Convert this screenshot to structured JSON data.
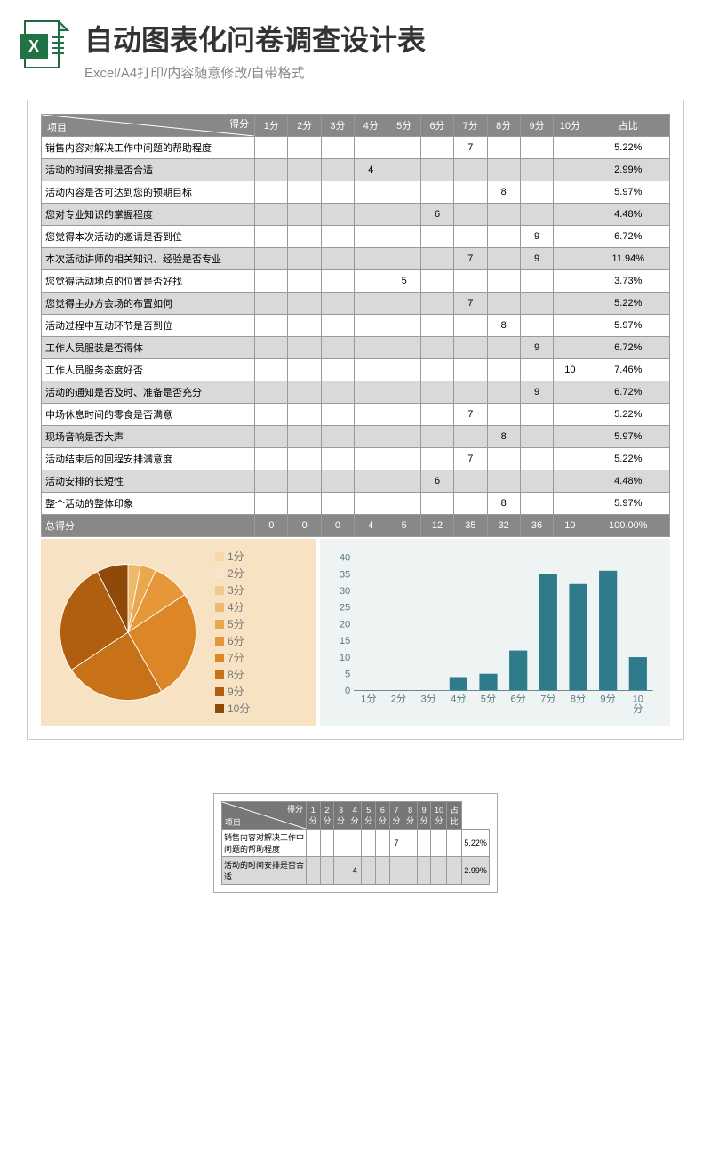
{
  "header": {
    "title": "自动图表化问卷调查设计表",
    "subtitle": "Excel/A4打印/内容随意修改/自带格式",
    "icon_fill": "#217346",
    "icon_accent": "#ffffff"
  },
  "table": {
    "diag_top": "得分",
    "diag_bottom": "项目",
    "score_headers": [
      "1分",
      "2分",
      "3分",
      "4分",
      "5分",
      "6分",
      "7分",
      "8分",
      "9分",
      "10分"
    ],
    "pct_header": "占比",
    "rows": [
      {
        "label": "销售内容对解决工作中问题的帮助程度",
        "cells": [
          "",
          "",
          "",
          "",
          "",
          "",
          "7",
          "",
          "",
          ""
        ],
        "pct": "5.22%"
      },
      {
        "label": "活动的时间安排是否合适",
        "cells": [
          "",
          "",
          "",
          "4",
          "",
          "",
          "",
          "",
          "",
          ""
        ],
        "pct": "2.99%"
      },
      {
        "label": "活动内容是否可达到您的预期目标",
        "cells": [
          "",
          "",
          "",
          "",
          "",
          "",
          "",
          "8",
          "",
          ""
        ],
        "pct": "5.97%"
      },
      {
        "label": "您对专业知识的掌握程度",
        "cells": [
          "",
          "",
          "",
          "",
          "",
          "6",
          "",
          "",
          "",
          ""
        ],
        "pct": "4.48%"
      },
      {
        "label": "您觉得本次活动的邀请是否到位",
        "cells": [
          "",
          "",
          "",
          "",
          "",
          "",
          "",
          "",
          "9",
          ""
        ],
        "pct": "6.72%"
      },
      {
        "label": "本次活动讲师的相关知识、经验是否专业",
        "cells": [
          "",
          "",
          "",
          "",
          "",
          "",
          "7",
          "",
          "9",
          ""
        ],
        "pct": "11.94%"
      },
      {
        "label": "您觉得活动地点的位置是否好找",
        "cells": [
          "",
          "",
          "",
          "",
          "5",
          "",
          "",
          "",
          "",
          ""
        ],
        "pct": "3.73%"
      },
      {
        "label": "您觉得主办方会场的布置如何",
        "cells": [
          "",
          "",
          "",
          "",
          "",
          "",
          "7",
          "",
          "",
          ""
        ],
        "pct": "5.22%"
      },
      {
        "label": "活动过程中互动环节是否到位",
        "cells": [
          "",
          "",
          "",
          "",
          "",
          "",
          "",
          "8",
          "",
          ""
        ],
        "pct": "5.97%"
      },
      {
        "label": "工作人员服装是否得体",
        "cells": [
          "",
          "",
          "",
          "",
          "",
          "",
          "",
          "",
          "9",
          ""
        ],
        "pct": "6.72%"
      },
      {
        "label": "工作人员服务态度好否",
        "cells": [
          "",
          "",
          "",
          "",
          "",
          "",
          "",
          "",
          "",
          "10"
        ],
        "pct": "7.46%"
      },
      {
        "label": "活动的通知是否及时、准备是否充分",
        "cells": [
          "",
          "",
          "",
          "",
          "",
          "",
          "",
          "",
          "9",
          ""
        ],
        "pct": "6.72%"
      },
      {
        "label": "中场休息时间的零食是否满意",
        "cells": [
          "",
          "",
          "",
          "",
          "",
          "",
          "7",
          "",
          "",
          ""
        ],
        "pct": "5.22%"
      },
      {
        "label": "现场音响是否大声",
        "cells": [
          "",
          "",
          "",
          "",
          "",
          "",
          "",
          "8",
          "",
          ""
        ],
        "pct": "5.97%"
      },
      {
        "label": "活动结束后的回程安排满意度",
        "cells": [
          "",
          "",
          "",
          "",
          "",
          "",
          "7",
          "",
          "",
          ""
        ],
        "pct": "5.22%"
      },
      {
        "label": "活动安排的长短性",
        "cells": [
          "",
          "",
          "",
          "",
          "",
          "6",
          "",
          "",
          "",
          ""
        ],
        "pct": "4.48%"
      },
      {
        "label": "整个活动的整体印象",
        "cells": [
          "",
          "",
          "",
          "",
          "",
          "",
          "",
          "8",
          "",
          ""
        ],
        "pct": "5.97%"
      }
    ],
    "total_label": "总得分",
    "total_cells": [
      "0",
      "0",
      "0",
      "4",
      "5",
      "12",
      "35",
      "32",
      "36",
      "10"
    ],
    "total_pct": "100.00%"
  },
  "pie": {
    "background": "#f7e3c3",
    "legend_labels": [
      "1分",
      "2分",
      "3分",
      "4分",
      "5分",
      "6分",
      "7分",
      "8分",
      "9分",
      "10分"
    ],
    "values": [
      0,
      0,
      0,
      4,
      5,
      12,
      35,
      32,
      36,
      10
    ],
    "colors": [
      "#f6d7a8",
      "#f9e6cc",
      "#f3ca8e",
      "#eeb96d",
      "#e9a74e",
      "#e59739",
      "#dc8628",
      "#c77119",
      "#b05f10",
      "#8f4a0a"
    ]
  },
  "bar": {
    "background": "#eef4f4",
    "x_labels": [
      "1分",
      "2分",
      "3分",
      "4分",
      "5分",
      "6分",
      "7分",
      "8分",
      "9分",
      "10\n分"
    ],
    "values": [
      0,
      0,
      0,
      4,
      5,
      12,
      35,
      32,
      36,
      10
    ],
    "y_ticks": [
      0,
      5,
      10,
      15,
      20,
      25,
      30,
      35,
      40
    ],
    "ymax": 40,
    "bar_color": "#2f7b8c",
    "axis_color": "#5a7a7a",
    "label_color": "#5a7a7a",
    "label_fontsize": 12
  },
  "thumb": {
    "diag_top": "得分",
    "diag_bottom": "项目",
    "headers": [
      "1分",
      "2分",
      "3分",
      "4分",
      "5分",
      "6分",
      "7分",
      "8分",
      "9分",
      "10分",
      "占比"
    ],
    "rows": [
      {
        "label": "销售内容对解决工作中问题的帮助程度",
        "cells": [
          "",
          "",
          "",
          "",
          "",
          "",
          "7",
          "",
          "",
          "",
          ""
        ],
        "pct": "5.22%"
      },
      {
        "label": "活动的时间安排是否合适",
        "cells": [
          "",
          "",
          "",
          "4",
          "",
          "",
          "",
          "",
          "",
          "",
          ""
        ],
        "pct": "2.99%"
      }
    ]
  }
}
